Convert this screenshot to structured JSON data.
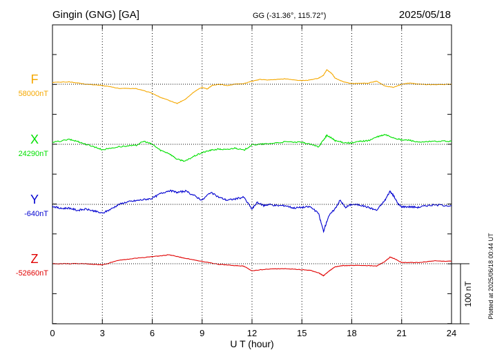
{
  "header": {
    "station": "Gingin (GNG)  [GA]",
    "coords": "GG (-31.36°, 115.72°)",
    "date": "2025/05/18"
  },
  "footer": {
    "xlabel": "U T (hour)",
    "plotted_note": "Plotted at 2025/06/18 00:44 UT",
    "scale_label": "100 nT"
  },
  "colors": {
    "F": "#f5a800",
    "X": "#00e000",
    "Y": "#0000d0",
    "Z": "#e00000",
    "grid": "#000000"
  },
  "chart_data": {
    "type": "line",
    "x_unit": "hour UT",
    "xlim": [
      0,
      24
    ],
    "x_ticks": [
      0,
      3,
      6,
      9,
      12,
      15,
      18,
      21,
      24
    ],
    "x_tick_labels": [
      "0",
      "3",
      "6",
      "9",
      "12",
      "15",
      "18",
      "21",
      "24"
    ],
    "scale_bar_nT": 100,
    "series": [
      {
        "name": "F",
        "baseline_label": "58000nT",
        "baseline_nT": 58000,
        "points": [
          [
            0,
            58003
          ],
          [
            1,
            58004
          ],
          [
            2,
            58000
          ],
          [
            3,
            57998
          ],
          [
            4,
            57993
          ],
          [
            5,
            57993
          ],
          [
            6,
            57985
          ],
          [
            6.5,
            57978
          ],
          [
            7,
            57973
          ],
          [
            7.5,
            57968
          ],
          [
            8,
            57975
          ],
          [
            8.5,
            57987
          ],
          [
            9,
            57995
          ],
          [
            9.3,
            57992
          ],
          [
            9.6,
            57998
          ],
          [
            10,
            58000
          ],
          [
            10.5,
            57998
          ],
          [
            11,
            58000
          ],
          [
            11.5,
            58001
          ],
          [
            12,
            58005
          ],
          [
            12.5,
            58008
          ],
          [
            13,
            58007
          ],
          [
            13.5,
            58008
          ],
          [
            14,
            58009
          ],
          [
            15,
            58006
          ],
          [
            15.5,
            58007
          ],
          [
            16,
            58010
          ],
          [
            16.3,
            58015
          ],
          [
            16.5,
            58024
          ],
          [
            16.8,
            58018
          ],
          [
            17,
            58010
          ],
          [
            17.5,
            58004
          ],
          [
            18,
            58001
          ],
          [
            19,
            58002
          ],
          [
            19.5,
            58005
          ],
          [
            20,
            57997
          ],
          [
            20.5,
            57995
          ],
          [
            21,
            58000
          ],
          [
            21.5,
            58002
          ],
          [
            22,
            58000
          ],
          [
            23,
            57999
          ],
          [
            24,
            58000
          ]
        ]
      },
      {
        "name": "X",
        "baseline_label": "24290nT",
        "baseline_nT": 24290,
        "points": [
          [
            0,
            24293
          ],
          [
            1,
            24298
          ],
          [
            1.5,
            24295
          ],
          [
            2,
            24290
          ],
          [
            2.5,
            24286
          ],
          [
            3,
            24281
          ],
          [
            4,
            24286
          ],
          [
            5,
            24288
          ],
          [
            5.5,
            24295
          ],
          [
            6,
            24290
          ],
          [
            6.5,
            24280
          ],
          [
            7,
            24275
          ],
          [
            7.5,
            24265
          ],
          [
            8,
            24262
          ],
          [
            8.5,
            24270
          ],
          [
            9,
            24276
          ],
          [
            9.5,
            24280
          ],
          [
            10,
            24282
          ],
          [
            10.5,
            24281
          ],
          [
            11,
            24284
          ],
          [
            11.5,
            24280
          ],
          [
            12,
            24289
          ],
          [
            12.5,
            24290
          ],
          [
            13,
            24291
          ],
          [
            14,
            24294
          ],
          [
            15,
            24293
          ],
          [
            15.5,
            24290
          ],
          [
            16,
            24286
          ],
          [
            16.3,
            24297
          ],
          [
            16.5,
            24305
          ],
          [
            16.8,
            24300
          ],
          [
            17,
            24296
          ],
          [
            17.5,
            24293
          ],
          [
            18,
            24292
          ],
          [
            18.5,
            24295
          ],
          [
            19,
            24296
          ],
          [
            19.5,
            24302
          ],
          [
            20,
            24306
          ],
          [
            20.5,
            24301
          ],
          [
            21,
            24297
          ],
          [
            21.5,
            24297
          ],
          [
            22,
            24293
          ],
          [
            23,
            24295
          ],
          [
            24,
            24295
          ]
        ]
      },
      {
        "name": "Y",
        "baseline_label": "-640nT",
        "baseline_nT": -640,
        "points": [
          [
            0,
            -643
          ],
          [
            0.5,
            -647
          ],
          [
            1,
            -646
          ],
          [
            1.5,
            -650
          ],
          [
            2,
            -648
          ],
          [
            2.5,
            -651
          ],
          [
            3,
            -655
          ],
          [
            3.5,
            -648
          ],
          [
            4,
            -640
          ],
          [
            4.5,
            -636
          ],
          [
            5,
            -634
          ],
          [
            5.5,
            -632
          ],
          [
            6,
            -630
          ],
          [
            6.5,
            -622
          ],
          [
            7,
            -617
          ],
          [
            7.5,
            -620
          ],
          [
            8,
            -618
          ],
          [
            8.5,
            -625
          ],
          [
            9,
            -633
          ],
          [
            9.5,
            -620
          ],
          [
            10,
            -628
          ],
          [
            10.5,
            -633
          ],
          [
            11,
            -631
          ],
          [
            11.5,
            -628
          ],
          [
            12,
            -648
          ],
          [
            12.3,
            -637
          ],
          [
            12.7,
            -642
          ],
          [
            13,
            -640
          ],
          [
            13.5,
            -642
          ],
          [
            14,
            -642
          ],
          [
            14.5,
            -646
          ],
          [
            15,
            -645
          ],
          [
            15.5,
            -644
          ],
          [
            16,
            -655
          ],
          [
            16.3,
            -685
          ],
          [
            16.6,
            -660
          ],
          [
            17,
            -647
          ],
          [
            17.3,
            -633
          ],
          [
            17.6,
            -645
          ],
          [
            18,
            -640
          ],
          [
            18.5,
            -641
          ],
          [
            19,
            -645
          ],
          [
            19.5,
            -650
          ],
          [
            20,
            -633
          ],
          [
            20.3,
            -618
          ],
          [
            20.5,
            -625
          ],
          [
            20.8,
            -640
          ],
          [
            21,
            -644
          ],
          [
            21.5,
            -644
          ],
          [
            22,
            -645
          ],
          [
            22.5,
            -642
          ],
          [
            23,
            -641
          ],
          [
            24,
            -642
          ]
        ]
      },
      {
        "name": "Z",
        "baseline_label": "-52660nT",
        "baseline_nT": -52660,
        "points": [
          [
            0,
            -52660
          ],
          [
            1,
            -52660
          ],
          [
            2,
            -52660
          ],
          [
            3,
            -52662
          ],
          [
            4,
            -52654
          ],
          [
            5,
            -52651
          ],
          [
            6,
            -52648
          ],
          [
            6.5,
            -52647
          ],
          [
            7,
            -52645
          ],
          [
            7.5,
            -52648
          ],
          [
            8,
            -52651
          ],
          [
            9,
            -52656
          ],
          [
            10,
            -52661
          ],
          [
            11,
            -52663
          ],
          [
            11.5,
            -52664
          ],
          [
            12,
            -52672
          ],
          [
            12.5,
            -52670
          ],
          [
            13,
            -52669
          ],
          [
            14,
            -52668
          ],
          [
            15,
            -52670
          ],
          [
            15.5,
            -52671
          ],
          [
            16,
            -52675
          ],
          [
            16.3,
            -52680
          ],
          [
            16.6,
            -52673
          ],
          [
            17,
            -52665
          ],
          [
            17.5,
            -52663
          ],
          [
            18,
            -52663
          ],
          [
            19,
            -52663
          ],
          [
            19.5,
            -52664
          ],
          [
            20,
            -52656
          ],
          [
            20.3,
            -52649
          ],
          [
            20.6,
            -52652
          ],
          [
            21,
            -52658
          ],
          [
            21.5,
            -52658
          ],
          [
            22,
            -52658
          ],
          [
            23,
            -52655
          ],
          [
            24,
            -52656
          ]
        ]
      }
    ]
  }
}
